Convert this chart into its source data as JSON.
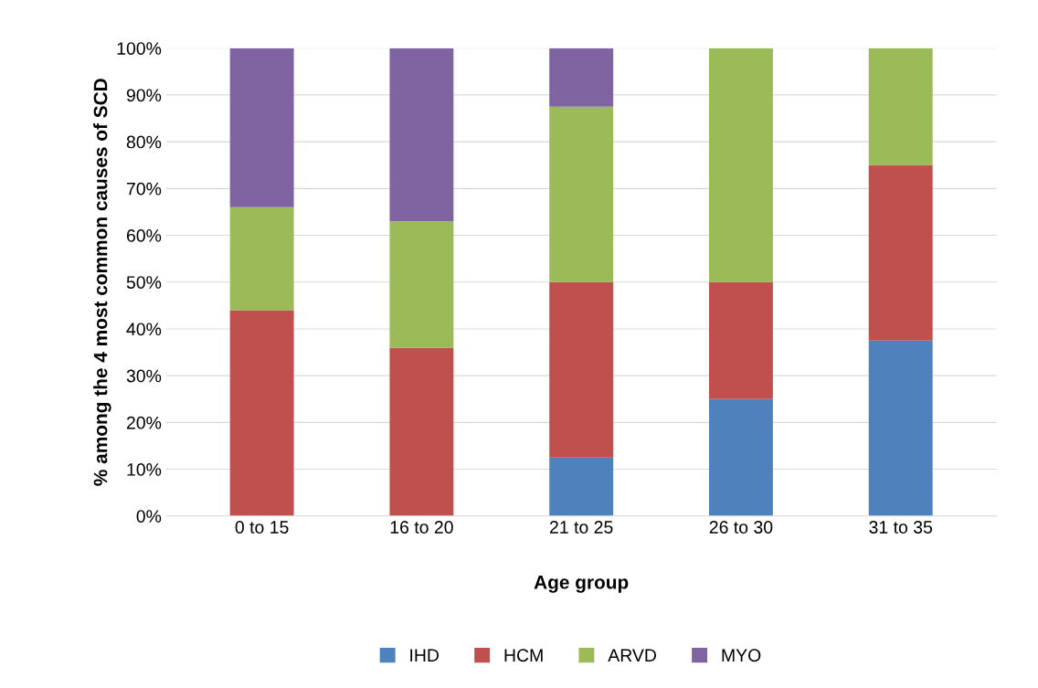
{
  "chart_data": {
    "type": "bar",
    "stacked": true,
    "xlabel": "Age group",
    "ylabel": "% among the 4 most common causes of SCD",
    "categories": [
      "0 to 15",
      "16 to 20",
      "21 to 25",
      "26 to 30",
      "31 to 35"
    ],
    "series": [
      {
        "name": "IHD",
        "color": "#4f81bd",
        "values": [
          0,
          0,
          12.5,
          25,
          37.5
        ]
      },
      {
        "name": "HCM",
        "color": "#c0504d",
        "values": [
          44,
          36,
          37.5,
          25,
          37.5
        ]
      },
      {
        "name": "ARVD",
        "color": "#9bbb59",
        "values": [
          22,
          27,
          37.5,
          50,
          25
        ]
      },
      {
        "name": "MYO",
        "color": "#8064a2",
        "values": [
          34,
          37,
          12.5,
          0,
          0
        ]
      }
    ],
    "ylim": [
      0,
      100
    ],
    "yticks": [
      {
        "value": 0,
        "label": "0%"
      },
      {
        "value": 10,
        "label": "10%"
      },
      {
        "value": 20,
        "label": "20%"
      },
      {
        "value": 30,
        "label": "30%"
      },
      {
        "value": 40,
        "label": "40%"
      },
      {
        "value": 50,
        "label": "50%"
      },
      {
        "value": 60,
        "label": "60%"
      },
      {
        "value": 70,
        "label": "70%"
      },
      {
        "value": 80,
        "label": "80%"
      },
      {
        "value": 90,
        "label": "90%"
      },
      {
        "value": 100,
        "label": "100%"
      }
    ],
    "grid": "y",
    "legend": "bottom"
  }
}
